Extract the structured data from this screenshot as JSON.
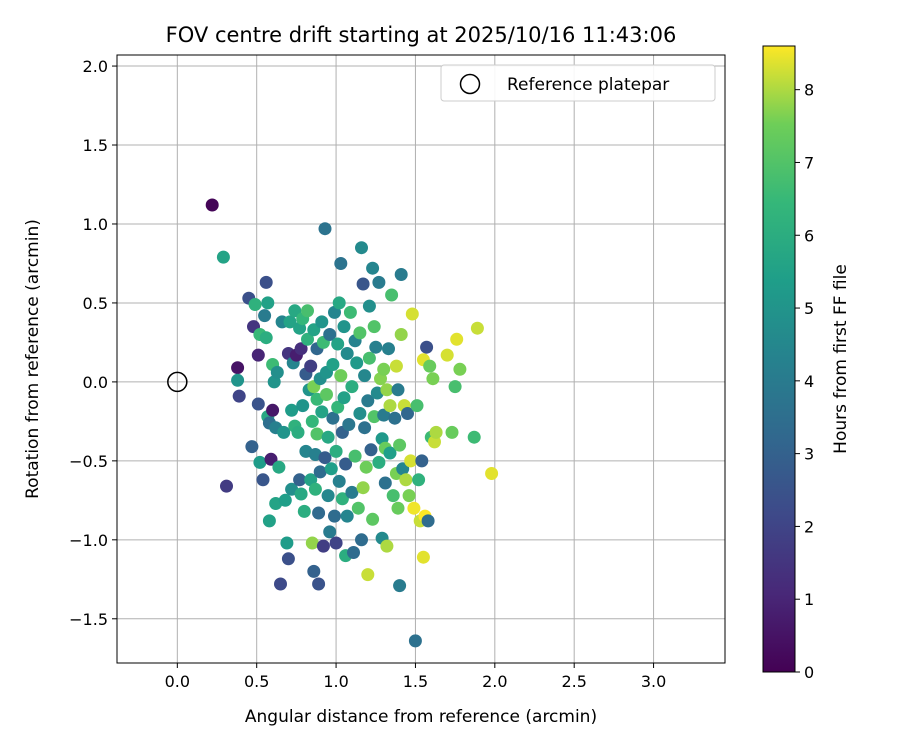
{
  "chart_data": {
    "type": "scatter",
    "title": "FOV centre drift starting at 2025/10/16 11:43:06",
    "xlabel": "Angular distance from reference (arcmin)",
    "ylabel": "Rotation from reference (arcmin)",
    "xlim": [
      -0.38,
      3.45
    ],
    "ylim": [
      -1.78,
      2.07
    ],
    "xticks": [
      0.0,
      0.5,
      1.0,
      1.5,
      2.0,
      2.5,
      3.0
    ],
    "xtick_labels": [
      "0.0",
      "0.5",
      "1.0",
      "1.5",
      "2.0",
      "2.5",
      "3.0"
    ],
    "yticks": [
      -1.5,
      -1.0,
      -0.5,
      0.0,
      0.5,
      1.0,
      1.5,
      2.0
    ],
    "ytick_labels": [
      "−1.5",
      "−1.0",
      "−0.5",
      "0.0",
      "0.5",
      "1.0",
      "1.5",
      "2.0"
    ],
    "grid": true,
    "colormap": "viridis",
    "colorbar": {
      "label": "Hours from first FF file",
      "range": [
        0,
        8.6
      ],
      "ticks": [
        0,
        1,
        2,
        3,
        4,
        5,
        6,
        7,
        8
      ],
      "tick_labels": [
        "0",
        "1",
        "2",
        "3",
        "4",
        "5",
        "6",
        "7",
        "8"
      ]
    },
    "legend": {
      "position": "top-right",
      "entries": [
        "Reference platepar"
      ]
    },
    "reference_point": {
      "x": 0.0,
      "y": 0.0,
      "label": "Reference platepar"
    },
    "points": [
      [
        0.22,
        1.12,
        0.1
      ],
      [
        0.29,
        0.79,
        5.6
      ],
      [
        0.31,
        -0.66,
        1.7
      ],
      [
        0.38,
        0.09,
        0.5
      ],
      [
        0.38,
        0.01,
        5.0
      ],
      [
        0.39,
        -0.09,
        2.0
      ],
      [
        0.45,
        0.53,
        2.4
      ],
      [
        0.47,
        -0.41,
        3.0
      ],
      [
        0.48,
        0.35,
        1.5
      ],
      [
        0.49,
        0.49,
        6.2
      ],
      [
        0.51,
        -0.14,
        2.5
      ],
      [
        0.51,
        0.17,
        1.0
      ],
      [
        0.52,
        0.3,
        6.5
      ],
      [
        0.52,
        -0.51,
        5.3
      ],
      [
        0.54,
        -0.62,
        2.6
      ],
      [
        0.55,
        0.42,
        4.0
      ],
      [
        0.56,
        0.63,
        2.4
      ],
      [
        0.56,
        0.28,
        6.0
      ],
      [
        0.57,
        0.5,
        5.5
      ],
      [
        0.57,
        -0.22,
        5.8
      ],
      [
        0.58,
        -0.88,
        5.5
      ],
      [
        0.58,
        -0.26,
        3.5
      ],
      [
        0.59,
        -0.49,
        0.8
      ],
      [
        0.6,
        0.11,
        6.6
      ],
      [
        0.6,
        -0.18,
        0.6
      ],
      [
        0.61,
        0.0,
        5.0
      ],
      [
        0.62,
        -0.29,
        4.2
      ],
      [
        0.62,
        -0.77,
        5.6
      ],
      [
        0.63,
        0.06,
        4.8
      ],
      [
        0.64,
        -0.54,
        5.8
      ],
      [
        0.65,
        -1.28,
        2.2
      ],
      [
        0.66,
        0.38,
        4.4
      ],
      [
        0.67,
        -0.32,
        5.0
      ],
      [
        0.68,
        -0.75,
        5.4
      ],
      [
        0.69,
        -1.02,
        5.3
      ],
      [
        0.7,
        0.18,
        1.5
      ],
      [
        0.7,
        -1.12,
        2.4
      ],
      [
        0.71,
        0.38,
        5.6
      ],
      [
        0.72,
        -0.18,
        5.3
      ],
      [
        0.72,
        -0.68,
        4.8
      ],
      [
        0.73,
        0.12,
        4.4
      ],
      [
        0.74,
        0.45,
        5.8
      ],
      [
        0.74,
        -0.28,
        6.2
      ],
      [
        0.75,
        0.17,
        0.8
      ],
      [
        0.76,
        -0.32,
        6.0
      ],
      [
        0.77,
        0.34,
        5.6
      ],
      [
        0.77,
        -0.62,
        3.0
      ],
      [
        0.78,
        0.21,
        1.3
      ],
      [
        0.78,
        -0.71,
        5.8
      ],
      [
        0.79,
        0.4,
        6.4
      ],
      [
        0.79,
        -0.15,
        5.0
      ],
      [
        0.8,
        -0.82,
        6.0
      ],
      [
        0.81,
        0.05,
        2.8
      ],
      [
        0.81,
        -0.44,
        4.4
      ],
      [
        0.82,
        0.45,
        6.8
      ],
      [
        0.82,
        0.27,
        6.2
      ],
      [
        0.83,
        -0.05,
        5.0
      ],
      [
        0.84,
        -0.62,
        5.6
      ],
      [
        0.84,
        0.1,
        1.8
      ],
      [
        0.85,
        -0.25,
        6.4
      ],
      [
        0.85,
        -1.02,
        7.8
      ],
      [
        0.86,
        -0.03,
        7.6
      ],
      [
        0.86,
        -1.2,
        3.0
      ],
      [
        0.86,
        0.33,
        5.6
      ],
      [
        0.87,
        -0.46,
        4.2
      ],
      [
        0.87,
        -0.68,
        6.2
      ],
      [
        0.88,
        0.21,
        3.2
      ],
      [
        0.88,
        -0.11,
        6.5
      ],
      [
        0.88,
        -0.33,
        7.0
      ],
      [
        0.89,
        -0.83,
        3.3
      ],
      [
        0.89,
        -1.28,
        2.5
      ],
      [
        0.9,
        0.02,
        4.8
      ],
      [
        0.9,
        -0.57,
        3.4
      ],
      [
        0.91,
        -0.19,
        5.6
      ],
      [
        0.91,
        0.38,
        5.0
      ],
      [
        0.92,
        -1.04,
        1.8
      ],
      [
        0.92,
        0.25,
        6.6
      ],
      [
        0.93,
        0.97,
        3.7
      ],
      [
        0.93,
        -0.48,
        2.8
      ],
      [
        0.94,
        -0.08,
        7.2
      ],
      [
        0.94,
        0.06,
        5.0
      ],
      [
        0.95,
        -0.35,
        5.8
      ],
      [
        0.95,
        -0.72,
        4.5
      ],
      [
        0.96,
        0.3,
        3.6
      ],
      [
        0.96,
        -0.95,
        4.0
      ],
      [
        0.97,
        -0.55,
        5.4
      ],
      [
        0.98,
        0.11,
        5.5
      ],
      [
        0.98,
        -0.23,
        3.6
      ],
      [
        0.99,
        0.44,
        4.4
      ],
      [
        0.99,
        -0.85,
        3.4
      ],
      [
        1.0,
        -0.44,
        6.0
      ],
      [
        1.0,
        -1.02,
        2.0
      ],
      [
        1.01,
        0.24,
        5.6
      ],
      [
        1.01,
        -0.16,
        6.4
      ],
      [
        1.02,
        0.5,
        5.8
      ],
      [
        1.02,
        -0.63,
        4.2
      ],
      [
        1.03,
        0.75,
        3.7
      ],
      [
        1.03,
        0.04,
        7.5
      ],
      [
        1.04,
        -0.32,
        3.0
      ],
      [
        1.04,
        -0.74,
        6.2
      ],
      [
        1.05,
        0.35,
        5.0
      ],
      [
        1.05,
        -0.1,
        5.5
      ],
      [
        1.06,
        -1.1,
        6.0
      ],
      [
        1.06,
        -0.52,
        2.8
      ],
      [
        1.07,
        0.18,
        4.6
      ],
      [
        1.07,
        -0.85,
        4.4
      ],
      [
        1.08,
        -0.27,
        3.8
      ],
      [
        1.09,
        0.44,
        6.6
      ],
      [
        1.1,
        -0.03,
        6.0
      ],
      [
        1.1,
        -0.7,
        4.0
      ],
      [
        1.11,
        -1.08,
        3.4
      ],
      [
        1.12,
        0.26,
        4.3
      ],
      [
        1.12,
        -0.47,
        6.8
      ],
      [
        1.13,
        0.12,
        5.2
      ],
      [
        1.14,
        -0.8,
        7.0
      ],
      [
        1.15,
        -0.2,
        4.8
      ],
      [
        1.15,
        0.31,
        7.0
      ],
      [
        1.16,
        0.85,
        4.6
      ],
      [
        1.16,
        -1.0,
        3.4
      ],
      [
        1.17,
        0.62,
        2.6
      ],
      [
        1.17,
        -0.67,
        7.8
      ],
      [
        1.18,
        -0.29,
        3.6
      ],
      [
        1.18,
        0.04,
        4.5
      ],
      [
        1.19,
        -0.54,
        7.5
      ],
      [
        1.2,
        -1.22,
        8.2
      ],
      [
        1.2,
        -0.12,
        4.0
      ],
      [
        1.21,
        0.48,
        4.8
      ],
      [
        1.21,
        0.15,
        6.8
      ],
      [
        1.22,
        -0.43,
        3.0
      ],
      [
        1.23,
        0.72,
        4.4
      ],
      [
        1.23,
        -0.87,
        7.2
      ],
      [
        1.24,
        0.35,
        7.0
      ],
      [
        1.24,
        -0.22,
        7.0
      ],
      [
        1.25,
        0.22,
        4.2
      ],
      [
        1.26,
        -0.07,
        4.6
      ],
      [
        1.27,
        0.63,
        4.0
      ],
      [
        1.27,
        -0.51,
        6.0
      ],
      [
        1.28,
        0.02,
        7.7
      ],
      [
        1.29,
        -0.36,
        5.2
      ],
      [
        1.29,
        -0.99,
        4.6
      ],
      [
        1.3,
        0.08,
        7.6
      ],
      [
        1.3,
        -0.21,
        4.0
      ],
      [
        1.31,
        -0.64,
        3.6
      ],
      [
        1.31,
        -0.42,
        7.4
      ],
      [
        1.32,
        -0.05,
        7.8
      ],
      [
        1.32,
        -1.04,
        8.0
      ],
      [
        1.33,
        0.21,
        4.2
      ],
      [
        1.34,
        -0.15,
        8.0
      ],
      [
        1.34,
        -0.45,
        5.4
      ],
      [
        1.35,
        0.55,
        6.8
      ],
      [
        1.36,
        -0.72,
        6.8
      ],
      [
        1.37,
        -0.23,
        3.6
      ],
      [
        1.38,
        0.1,
        8.2
      ],
      [
        1.38,
        -0.58,
        7.6
      ],
      [
        1.39,
        -0.8,
        7.4
      ],
      [
        1.39,
        -0.05,
        4.0
      ],
      [
        1.4,
        -0.4,
        7.2
      ],
      [
        1.4,
        -1.29,
        4.0
      ],
      [
        1.41,
        0.68,
        4.0
      ],
      [
        1.41,
        0.3,
        7.8
      ],
      [
        1.42,
        -0.55,
        4.4
      ],
      [
        1.43,
        -0.15,
        8.2
      ],
      [
        1.44,
        -0.62,
        8.0
      ],
      [
        1.45,
        -0.2,
        3.2
      ],
      [
        1.46,
        -0.72,
        7.6
      ],
      [
        1.47,
        -0.5,
        8.3
      ],
      [
        1.48,
        0.43,
        8.3
      ],
      [
        1.49,
        -0.8,
        8.5
      ],
      [
        1.5,
        -1.64,
        3.6
      ],
      [
        1.51,
        -0.15,
        6.8
      ],
      [
        1.52,
        -0.62,
        6.2
      ],
      [
        1.53,
        -0.88,
        8.2
      ],
      [
        1.54,
        -0.5,
        3.0
      ],
      [
        1.55,
        0.14,
        8.4
      ],
      [
        1.55,
        -1.11,
        8.4
      ],
      [
        1.56,
        -0.85,
        8.6
      ],
      [
        1.57,
        0.22,
        2.4
      ],
      [
        1.58,
        -0.88,
        3.4
      ],
      [
        1.59,
        0.1,
        7.4
      ],
      [
        1.6,
        -0.35,
        6.6
      ],
      [
        1.61,
        0.02,
        7.6
      ],
      [
        1.62,
        -0.38,
        8.2
      ],
      [
        1.63,
        -0.32,
        8.0
      ],
      [
        1.7,
        0.17,
        8.3
      ],
      [
        1.73,
        -0.32,
        7.4
      ],
      [
        1.75,
        -0.03,
        6.8
      ],
      [
        1.76,
        0.27,
        8.4
      ],
      [
        1.78,
        0.08,
        7.6
      ],
      [
        1.87,
        -0.35,
        6.6
      ],
      [
        1.89,
        0.34,
        8.2
      ],
      [
        1.98,
        -0.58,
        8.4
      ]
    ]
  }
}
